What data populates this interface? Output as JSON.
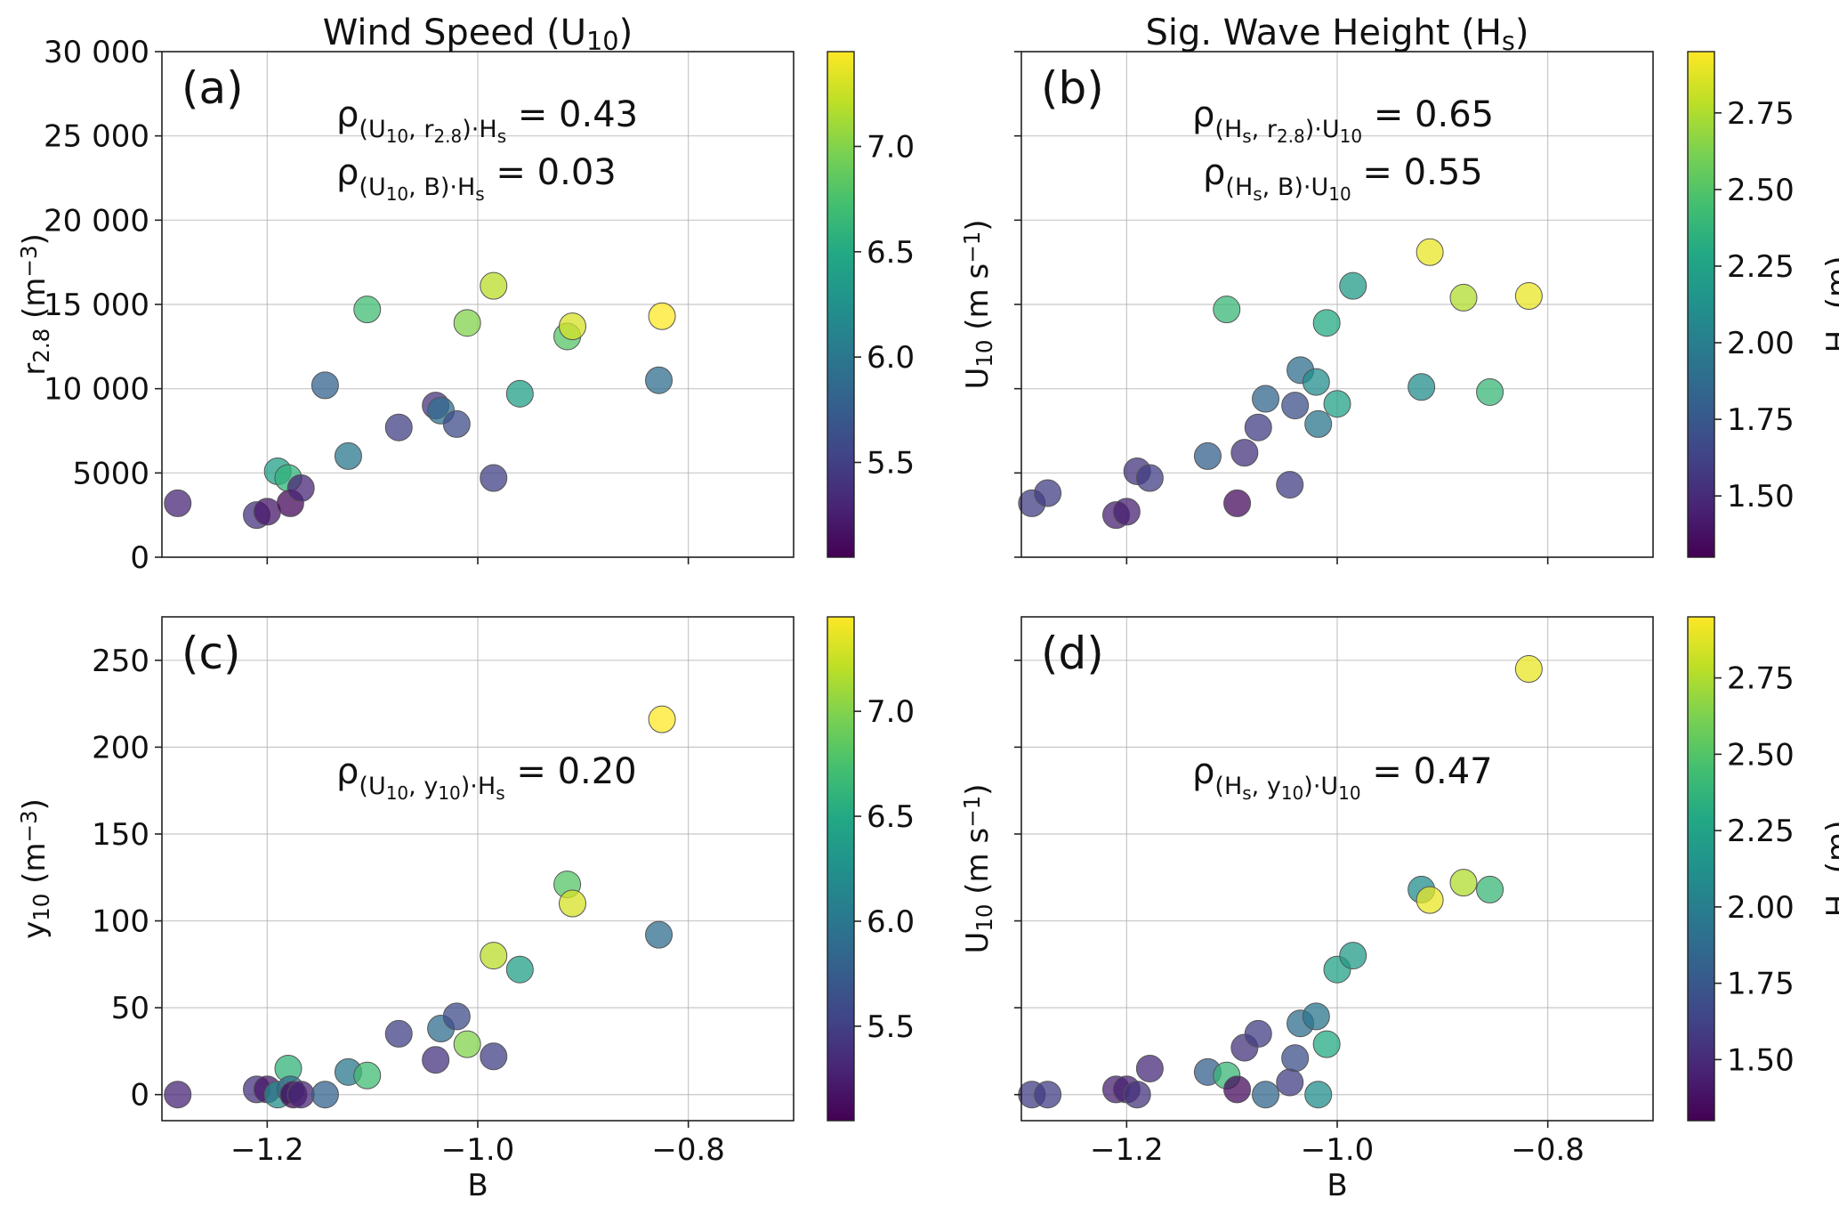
{
  "chart_data": [
    {
      "id": "a",
      "type": "scatter",
      "column_title": "Wind Speed (U10)",
      "panel_label": "(a)",
      "xlabel": "",
      "ylabel": "r2.8 (m−3)",
      "xlim": [
        -1.3,
        -0.7
      ],
      "ylim": [
        0,
        30000
      ],
      "xticks": [
        -1.2,
        -1.0,
        -0.8
      ],
      "xtick_labels": [
        "",
        "",
        ""
      ],
      "yticks": [
        0,
        5000,
        10000,
        15000,
        20000,
        25000,
        30000
      ],
      "ytick_labels": [
        "0",
        "5000",
        "10 000",
        "15 000",
        "20 000",
        "25 000",
        "30 000"
      ],
      "grid": true,
      "colorbar": {
        "label": "U10 (m s−1)",
        "range": [
          5.05,
          7.45
        ],
        "ticks": [
          "5.5",
          "6.0",
          "6.5",
          "7.0"
        ],
        "tick_values": [
          5.5,
          6.0,
          6.5,
          7.0
        ],
        "colormap": "viridis"
      },
      "annotations": [
        {
          "main": "ρ",
          "sub": "(U10, r2.8)·Hs",
          "text": "= 0.43"
        },
        {
          "main": "ρ",
          "sub": "(U10, B)·Hs",
          "text": "= 0.03"
        }
      ],
      "points": [
        {
          "x": -1.285,
          "y": 3200,
          "c": 5.3
        },
        {
          "x": -1.21,
          "y": 2500,
          "c": 5.4
        },
        {
          "x": -1.2,
          "y": 2700,
          "c": 5.2
        },
        {
          "x": -1.19,
          "y": 5100,
          "c": 6.4
        },
        {
          "x": -1.18,
          "y": 4700,
          "c": 6.6
        },
        {
          "x": -1.178,
          "y": 3200,
          "c": 5.1
        },
        {
          "x": -1.168,
          "y": 4100,
          "c": 5.3
        },
        {
          "x": -1.145,
          "y": 10200,
          "c": 5.8
        },
        {
          "x": -1.123,
          "y": 6000,
          "c": 6.0
        },
        {
          "x": -1.105,
          "y": 14700,
          "c": 6.7
        },
        {
          "x": -1.075,
          "y": 7700,
          "c": 5.5
        },
        {
          "x": -1.04,
          "y": 9000,
          "c": 5.4
        },
        {
          "x": -1.035,
          "y": 8700,
          "c": 5.9
        },
        {
          "x": -1.02,
          "y": 7900,
          "c": 5.6
        },
        {
          "x": -1.01,
          "y": 13900,
          "c": 7.0
        },
        {
          "x": -0.985,
          "y": 16100,
          "c": 7.2
        },
        {
          "x": -0.985,
          "y": 4700,
          "c": 5.5
        },
        {
          "x": -0.96,
          "y": 9700,
          "c": 6.4
        },
        {
          "x": -0.915,
          "y": 13100,
          "c": 6.8
        },
        {
          "x": -0.91,
          "y": 13700,
          "c": 7.3
        },
        {
          "x": -0.828,
          "y": 10500,
          "c": 5.9
        },
        {
          "x": -0.825,
          "y": 14300,
          "c": 7.45
        }
      ]
    },
    {
      "id": "b",
      "type": "scatter",
      "column_title": "Sig. Wave Height (Hs)",
      "panel_label": "(b)",
      "xlabel": "",
      "ylabel": "",
      "xlim": [
        -1.3,
        -0.7
      ],
      "ylim": [
        0,
        30000
      ],
      "xticks": [
        -1.2,
        -1.0,
        -0.8
      ],
      "xtick_labels": [
        "",
        "",
        ""
      ],
      "yticks": [
        0,
        5000,
        10000,
        15000,
        20000,
        25000,
        30000
      ],
      "ytick_labels": [
        "",
        "",
        "",
        "",
        "",
        "",
        ""
      ],
      "grid": true,
      "colorbar": {
        "label": "Hs (m)",
        "range": [
          1.3,
          2.95
        ],
        "ticks": [
          "1.50",
          "1.75",
          "2.00",
          "2.25",
          "2.50",
          "2.75"
        ],
        "tick_values": [
          1.5,
          1.75,
          2.0,
          2.25,
          2.5,
          2.75
        ],
        "colormap": "viridis"
      },
      "annotations": [
        {
          "main": "ρ",
          "sub": "(Hs, r2.8)·U10",
          "text": "= 0.65"
        },
        {
          "main": "ρ",
          "sub": "(Hs, B)·U10",
          "text": "= 0.55"
        }
      ],
      "points": [
        {
          "x": -1.29,
          "y": 3200,
          "c": 1.6
        },
        {
          "x": -1.275,
          "y": 3800,
          "c": 1.6
        },
        {
          "x": -1.21,
          "y": 2500,
          "c": 1.45
        },
        {
          "x": -1.2,
          "y": 2700,
          "c": 1.45
        },
        {
          "x": -1.19,
          "y": 5100,
          "c": 1.55
        },
        {
          "x": -1.178,
          "y": 4700,
          "c": 1.6
        },
        {
          "x": -1.123,
          "y": 6000,
          "c": 1.8
        },
        {
          "x": -1.105,
          "y": 14700,
          "c": 2.4
        },
        {
          "x": -1.095,
          "y": 3200,
          "c": 1.35
        },
        {
          "x": -1.088,
          "y": 6200,
          "c": 1.55
        },
        {
          "x": -1.075,
          "y": 7700,
          "c": 1.6
        },
        {
          "x": -1.068,
          "y": 9400,
          "c": 1.85
        },
        {
          "x": -1.045,
          "y": 4300,
          "c": 1.6
        },
        {
          "x": -1.04,
          "y": 9000,
          "c": 1.7
        },
        {
          "x": -1.035,
          "y": 11100,
          "c": 1.9
        },
        {
          "x": -1.02,
          "y": 10400,
          "c": 2.1
        },
        {
          "x": -1.018,
          "y": 7900,
          "c": 1.95
        },
        {
          "x": -1.01,
          "y": 13900,
          "c": 2.3
        },
        {
          "x": -1.0,
          "y": 9100,
          "c": 2.25
        },
        {
          "x": -0.985,
          "y": 16100,
          "c": 2.2
        },
        {
          "x": -0.92,
          "y": 10100,
          "c": 2.1
        },
        {
          "x": -0.912,
          "y": 18100,
          "c": 2.9
        },
        {
          "x": -0.88,
          "y": 15400,
          "c": 2.75
        },
        {
          "x": -0.855,
          "y": 9800,
          "c": 2.4
        },
        {
          "x": -0.818,
          "y": 15500,
          "c": 2.9
        }
      ]
    },
    {
      "id": "c",
      "type": "scatter",
      "column_title": "",
      "panel_label": "(c)",
      "xlabel": "B",
      "ylabel": "y10 (m−3)",
      "xlim": [
        -1.3,
        -0.7
      ],
      "ylim": [
        -15,
        275
      ],
      "xticks": [
        -1.2,
        -1.0,
        -0.8
      ],
      "xtick_labels": [
        "−1.2",
        "−1.0",
        "−0.8"
      ],
      "yticks": [
        0,
        50,
        100,
        150,
        200,
        250
      ],
      "ytick_labels": [
        "0",
        "50",
        "100",
        "150",
        "200",
        "250"
      ],
      "grid": true,
      "colorbar": {
        "label": "U10 (m s−1)",
        "range": [
          5.05,
          7.45
        ],
        "ticks": [
          "5.5",
          "6.0",
          "6.5",
          "7.0"
        ],
        "tick_values": [
          5.5,
          6.0,
          6.5,
          7.0
        ],
        "colormap": "viridis"
      },
      "annotations": [
        {
          "main": "ρ",
          "sub": "(U10, y10)·Hs",
          "text": "= 0.20"
        }
      ],
      "points": [
        {
          "x": -1.285,
          "y": 0,
          "c": 5.3
        },
        {
          "x": -1.21,
          "y": 3,
          "c": 5.4
        },
        {
          "x": -1.2,
          "y": 3,
          "c": 5.2
        },
        {
          "x": -1.19,
          "y": 0,
          "c": 6.2
        },
        {
          "x": -1.18,
          "y": 15,
          "c": 6.6
        },
        {
          "x": -1.178,
          "y": 3,
          "c": 5.9
        },
        {
          "x": -1.175,
          "y": 0,
          "c": 5.1
        },
        {
          "x": -1.168,
          "y": 0,
          "c": 5.3
        },
        {
          "x": -1.145,
          "y": 0,
          "c": 5.8
        },
        {
          "x": -1.123,
          "y": 13,
          "c": 6.0
        },
        {
          "x": -1.105,
          "y": 11,
          "c": 6.7
        },
        {
          "x": -1.075,
          "y": 35,
          "c": 5.5
        },
        {
          "x": -1.04,
          "y": 20,
          "c": 5.4
        },
        {
          "x": -1.035,
          "y": 38,
          "c": 5.9
        },
        {
          "x": -1.02,
          "y": 45,
          "c": 5.6
        },
        {
          "x": -1.01,
          "y": 29,
          "c": 7.0
        },
        {
          "x": -0.985,
          "y": 80,
          "c": 7.2
        },
        {
          "x": -0.985,
          "y": 22,
          "c": 5.5
        },
        {
          "x": -0.96,
          "y": 72,
          "c": 6.4
        },
        {
          "x": -0.915,
          "y": 121,
          "c": 6.8
        },
        {
          "x": -0.91,
          "y": 110,
          "c": 7.3
        },
        {
          "x": -0.828,
          "y": 92,
          "c": 5.9
        },
        {
          "x": -0.825,
          "y": 216,
          "c": 7.45
        }
      ]
    },
    {
      "id": "d",
      "type": "scatter",
      "column_title": "",
      "panel_label": "(d)",
      "xlabel": "B",
      "ylabel": "",
      "xlim": [
        -1.3,
        -0.7
      ],
      "ylim": [
        -15,
        275
      ],
      "xticks": [
        -1.2,
        -1.0,
        -0.8
      ],
      "xtick_labels": [
        "−1.2",
        "−1.0",
        "−0.8"
      ],
      "yticks": [
        0,
        50,
        100,
        150,
        200,
        250
      ],
      "ytick_labels": [
        "",
        "",
        "",
        "",
        "",
        ""
      ],
      "grid": true,
      "colorbar": {
        "label": "Hs (m)",
        "range": [
          1.3,
          2.95
        ],
        "ticks": [
          "1.50",
          "1.75",
          "2.00",
          "2.25",
          "2.50",
          "2.75"
        ],
        "tick_values": [
          1.5,
          1.75,
          2.0,
          2.25,
          2.5,
          2.75
        ],
        "colormap": "viridis"
      },
      "annotations": [
        {
          "main": "ρ",
          "sub": "(Hs, y10)·U10",
          "text": "= 0.47"
        }
      ],
      "points": [
        {
          "x": -1.29,
          "y": 0,
          "c": 1.6
        },
        {
          "x": -1.275,
          "y": 0,
          "c": 1.6
        },
        {
          "x": -1.21,
          "y": 3,
          "c": 1.45
        },
        {
          "x": -1.2,
          "y": 3,
          "c": 1.45
        },
        {
          "x": -1.19,
          "y": 0,
          "c": 1.55
        },
        {
          "x": -1.178,
          "y": 15,
          "c": 1.5
        },
        {
          "x": -1.123,
          "y": 13,
          "c": 1.8
        },
        {
          "x": -1.105,
          "y": 11,
          "c": 2.4
        },
        {
          "x": -1.095,
          "y": 3,
          "c": 1.35
        },
        {
          "x": -1.088,
          "y": 27,
          "c": 1.55
        },
        {
          "x": -1.075,
          "y": 35,
          "c": 1.6
        },
        {
          "x": -1.068,
          "y": 0,
          "c": 1.85
        },
        {
          "x": -1.045,
          "y": 7,
          "c": 1.6
        },
        {
          "x": -1.04,
          "y": 21,
          "c": 1.7
        },
        {
          "x": -1.035,
          "y": 41,
          "c": 1.9
        },
        {
          "x": -1.02,
          "y": 45,
          "c": 1.95
        },
        {
          "x": -1.018,
          "y": 0,
          "c": 2.1
        },
        {
          "x": -1.01,
          "y": 29,
          "c": 2.3
        },
        {
          "x": -1.0,
          "y": 72,
          "c": 2.25
        },
        {
          "x": -0.985,
          "y": 80,
          "c": 2.2
        },
        {
          "x": -0.92,
          "y": 118,
          "c": 2.1
        },
        {
          "x": -0.912,
          "y": 112,
          "c": 2.9
        },
        {
          "x": -0.88,
          "y": 122,
          "c": 2.75
        },
        {
          "x": -0.855,
          "y": 118,
          "c": 2.4
        },
        {
          "x": -0.818,
          "y": 245,
          "c": 2.9
        }
      ]
    }
  ]
}
